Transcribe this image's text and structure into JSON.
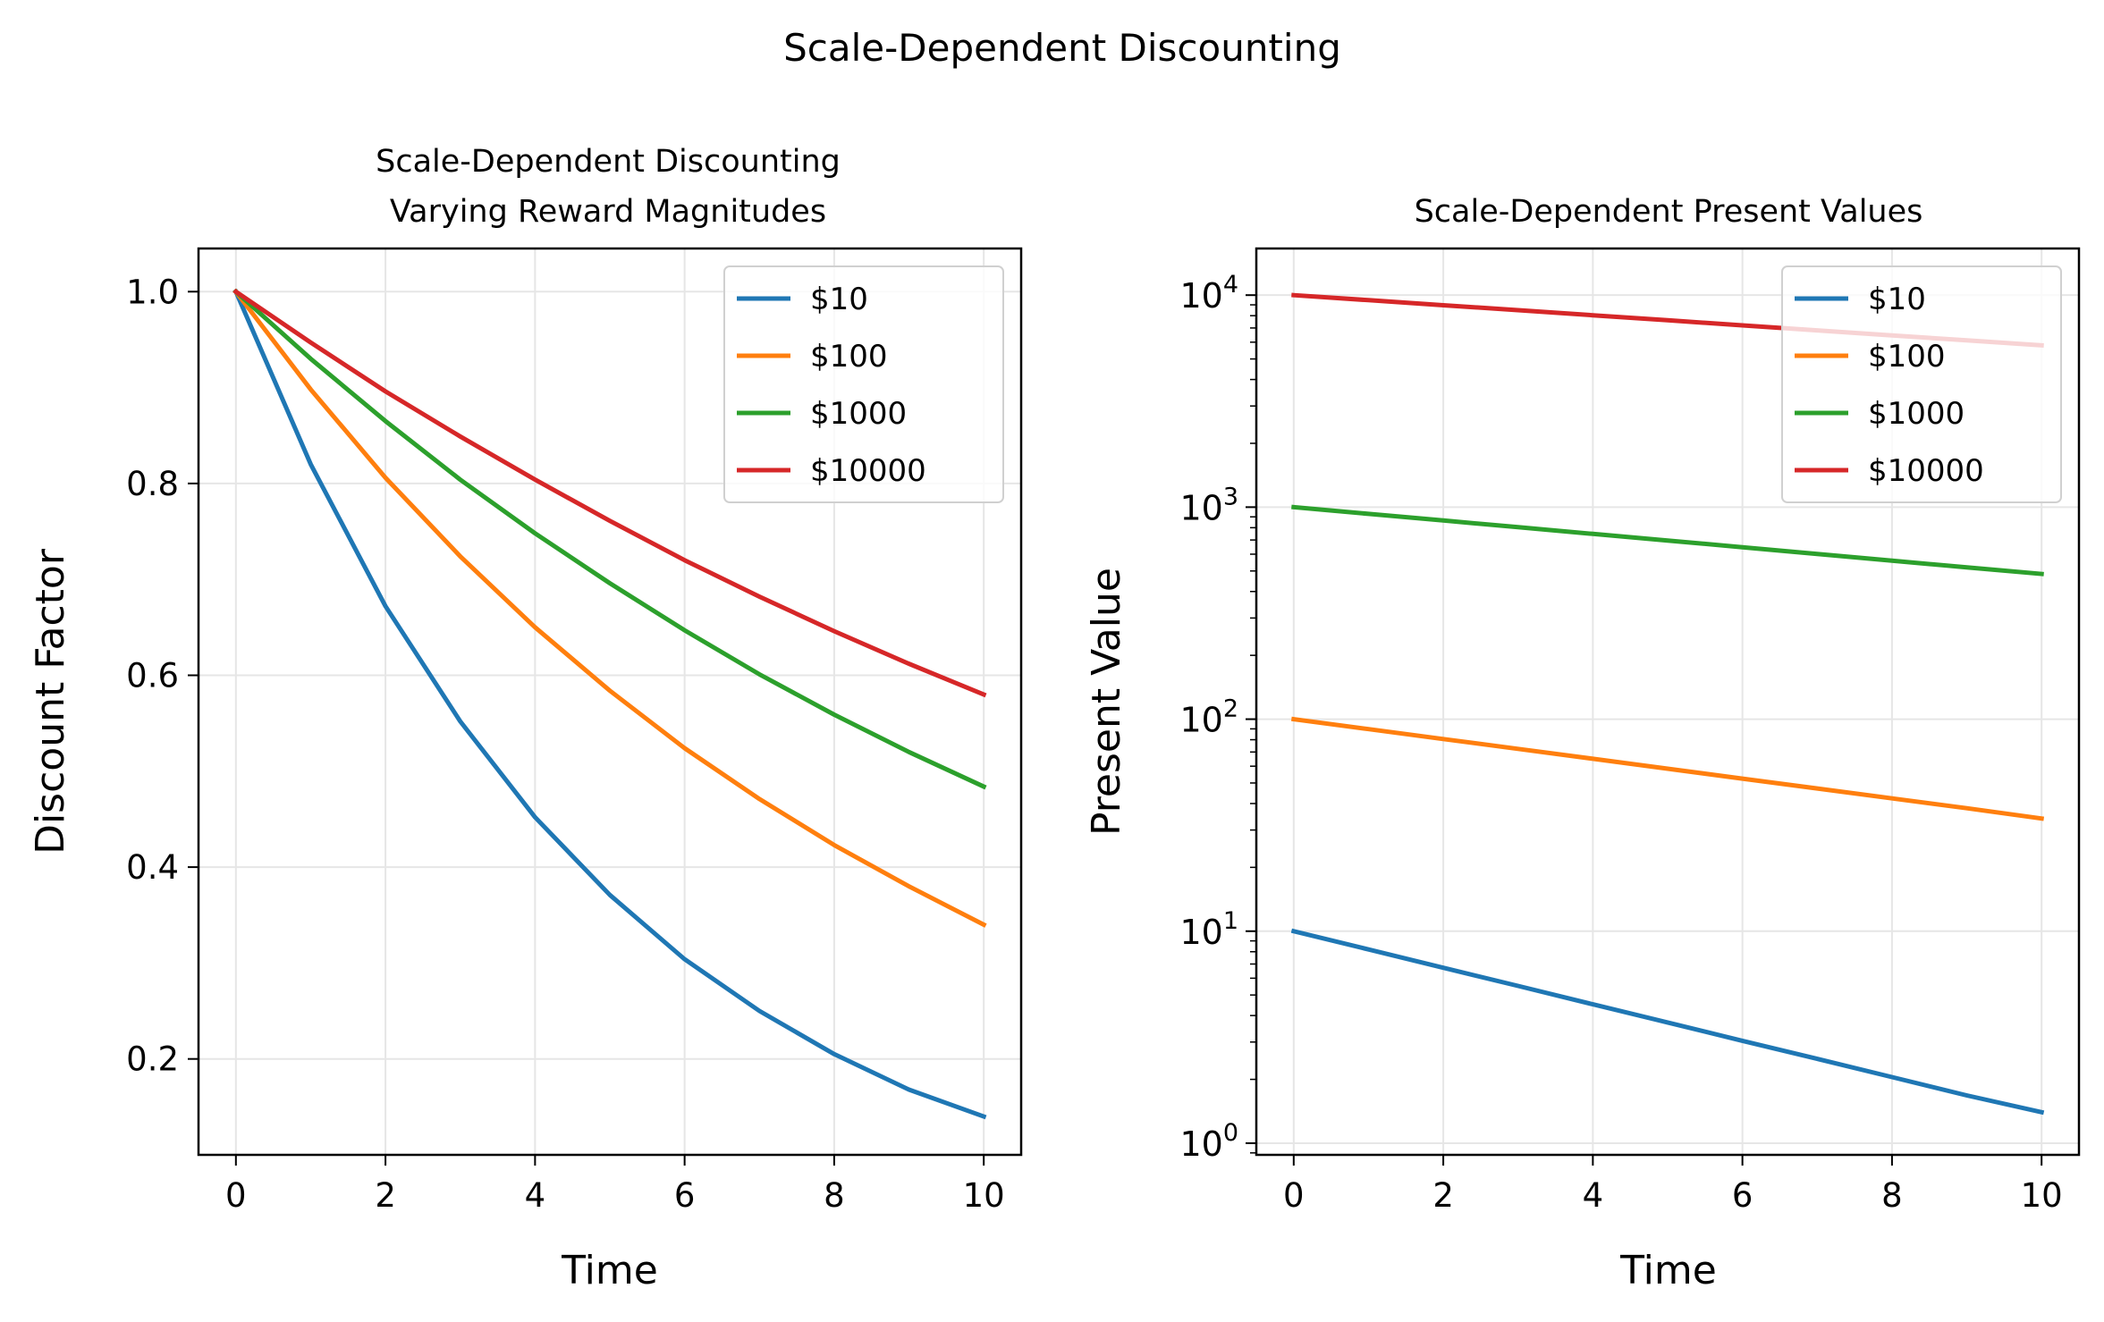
{
  "figure": {
    "suptitle": "Scale-Dependent Discounting"
  },
  "colors": {
    "s10": "#1f77b4",
    "s100": "#ff7f0e",
    "s1000": "#2ca02c",
    "s10000": "#d62728",
    "grid": "#e6e6e6"
  },
  "chart_data": [
    {
      "type": "line",
      "title_line1": "Scale-Dependent Discounting",
      "title_line2": "Varying Reward Magnitudes",
      "xlabel": "Time",
      "ylabel": "Discount Factor",
      "xlim": [
        -0.5,
        10.5
      ],
      "ylim": [
        0.1,
        1.045
      ],
      "xticks": [
        0,
        2,
        4,
        6,
        8,
        10
      ],
      "xtick_labels": [
        "0",
        "2",
        "4",
        "6",
        "8",
        "10"
      ],
      "yticks": [
        0.2,
        0.4,
        0.6,
        0.8,
        1.0
      ],
      "ytick_labels": [
        "0.2",
        "0.4",
        "0.6",
        "0.8",
        "1.0"
      ],
      "grid": true,
      "legend": "upper-right",
      "x": [
        0,
        1,
        2,
        3,
        4,
        5,
        6,
        7,
        8,
        9,
        10
      ],
      "series": [
        {
          "name": "$10",
          "color_key": "s10",
          "values": [
            1.0,
            0.82,
            0.672,
            0.552,
            0.452,
            0.371,
            0.304,
            0.25,
            0.205,
            0.168,
            0.14
          ]
        },
        {
          "name": "$100",
          "color_key": "s100",
          "values": [
            1.0,
            0.898,
            0.806,
            0.724,
            0.65,
            0.584,
            0.524,
            0.471,
            0.423,
            0.38,
            0.34
          ]
        },
        {
          "name": "$1000",
          "color_key": "s1000",
          "values": [
            1.0,
            0.93,
            0.865,
            0.804,
            0.748,
            0.696,
            0.647,
            0.601,
            0.559,
            0.52,
            0.484
          ]
        },
        {
          "name": "$10000",
          "color_key": "s10000",
          "values": [
            1.0,
            0.947,
            0.896,
            0.849,
            0.804,
            0.761,
            0.72,
            0.682,
            0.646,
            0.612,
            0.58
          ]
        }
      ]
    },
    {
      "type": "line",
      "title": "Scale-Dependent Present Values",
      "xlabel": "Time",
      "ylabel": "Present Value",
      "yscale": "log",
      "xlim": [
        -0.5,
        10.5
      ],
      "ylim_log10": [
        -0.055,
        4.22
      ],
      "xticks": [
        0,
        2,
        4,
        6,
        8,
        10
      ],
      "xtick_labels": [
        "0",
        "2",
        "4",
        "6",
        "8",
        "10"
      ],
      "yticks": [
        1,
        10,
        100,
        1000,
        10000
      ],
      "ytick_base": [
        "10",
        "10",
        "10",
        "10",
        "10"
      ],
      "ytick_exp": [
        "0",
        "1",
        "2",
        "3",
        "4"
      ],
      "grid": true,
      "legend": "upper-right",
      "x": [
        0,
        1,
        2,
        3,
        4,
        5,
        6,
        7,
        8,
        9,
        10
      ],
      "series": [
        {
          "name": "$10",
          "color_key": "s10",
          "values": [
            10,
            8.2,
            6.72,
            5.52,
            4.52,
            3.71,
            3.04,
            2.5,
            2.05,
            1.68,
            1.4
          ]
        },
        {
          "name": "$100",
          "color_key": "s100",
          "values": [
            100,
            89.8,
            80.6,
            72.4,
            65,
            58.4,
            52.4,
            47.1,
            42.3,
            38,
            34
          ]
        },
        {
          "name": "$1000",
          "color_key": "s1000",
          "values": [
            1000,
            930,
            865,
            804,
            748,
            696,
            647,
            601,
            559,
            520,
            484
          ]
        },
        {
          "name": "$10000",
          "color_key": "s10000",
          "values": [
            10000,
            9470,
            8960,
            8490,
            8040,
            7610,
            7200,
            6820,
            6460,
            6120,
            5800
          ]
        }
      ]
    }
  ]
}
